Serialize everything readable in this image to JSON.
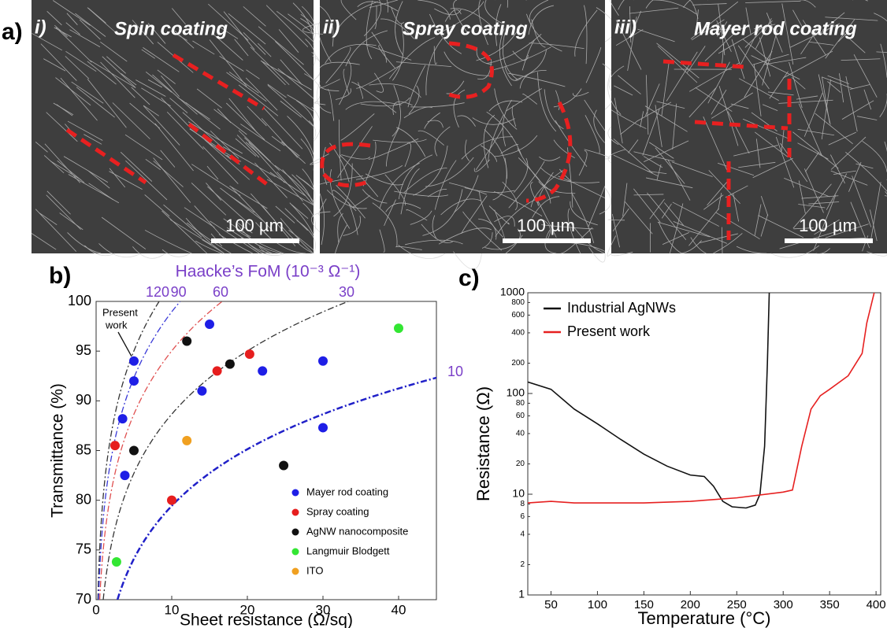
{
  "panel_labels": [
    "a)",
    "b)",
    "c)"
  ],
  "images": [
    {
      "label": "i)",
      "title": "Spin coating",
      "scale_bar": "100 µm"
    },
    {
      "label": "ii)",
      "title": "Spray coating",
      "scale_bar": "100 µm"
    },
    {
      "label": "iii)",
      "title": "Mayer rod coating",
      "scale_bar": "100 µm"
    }
  ],
  "chart_data": [
    {
      "type": "scatter",
      "top_title": "Haacke’s FoM (10⁻³ Ω⁻¹)",
      "x_label": "Sheet resistance (Ω/sq)",
      "y_label": "Transmittance (%)",
      "xlim": [
        0,
        45
      ],
      "xticks": [
        0,
        10,
        20,
        30,
        40
      ],
      "ylim": [
        70,
        100
      ],
      "yticks": [
        70,
        75,
        80,
        85,
        90,
        95,
        100
      ],
      "annotation_lines": [
        "Present",
        "work"
      ],
      "fom_curves": [
        {
          "value": 120,
          "color": "#333333"
        },
        {
          "value": 90,
          "color": "#3a3ad8"
        },
        {
          "value": 60,
          "color": "#e05050"
        },
        {
          "value": 30,
          "color": "#333333"
        },
        {
          "value": 10,
          "color": "#2020c8"
        }
      ],
      "legend": "lower right",
      "series": [
        {
          "name": "Mayer rod coating",
          "color": "#1e1ee6",
          "x": [
            15,
            5,
            5,
            3.5,
            3.8,
            14,
            22,
            30,
            30
          ],
          "values": [
            97.7,
            94,
            92,
            88.2,
            82.5,
            91,
            93,
            94,
            87.3
          ]
        },
        {
          "name": "Spray coating",
          "color": "#e61e1e",
          "x": [
            2.5,
            10,
            16,
            20.3
          ],
          "values": [
            85.5,
            80,
            93,
            94.7
          ]
        },
        {
          "name": "AgNW nanocomposite",
          "color": "#111111",
          "x": [
            12,
            5,
            17.7,
            24.8
          ],
          "values": [
            96,
            85,
            93.7,
            83.5
          ]
        },
        {
          "name": "Langmuir Blodgett",
          "color": "#33e633",
          "x": [
            2.7,
            40
          ],
          "values": [
            73.8,
            97.3
          ]
        },
        {
          "name": "ITO",
          "color": "#f0a020",
          "x": [
            12
          ],
          "values": [
            86
          ]
        }
      ]
    },
    {
      "type": "line",
      "x_label": "Temperature (°C)",
      "y_label": "Resistance (Ω)",
      "log_y": true,
      "xlim": [
        25,
        405
      ],
      "xticks": [
        50,
        100,
        150,
        200,
        250,
        300,
        350,
        400
      ],
      "ylim": [
        1,
        1000
      ],
      "yticks": [
        1,
        2,
        4,
        6,
        8,
        10,
        20,
        40,
        60,
        80,
        100,
        200,
        400,
        600,
        800,
        1000
      ],
      "series": [
        {
          "name": "Industrial AgNWs",
          "color": "#111111",
          "x": [
            25,
            50,
            75,
            100,
            125,
            150,
            175,
            200,
            215,
            225,
            235,
            245,
            260,
            270,
            275,
            280,
            283,
            285
          ],
          "values": [
            130,
            110,
            70,
            50,
            35,
            25,
            19,
            15.5,
            15,
            12,
            8.5,
            7.5,
            7.3,
            7.8,
            10,
            30,
            200,
            1000
          ]
        },
        {
          "name": "Present work",
          "color": "#e62020",
          "x": [
            25,
            50,
            75,
            100,
            150,
            200,
            250,
            300,
            310,
            320,
            330,
            340,
            350,
            370,
            385,
            390,
            398
          ],
          "values": [
            8.2,
            8.5,
            8.2,
            8.2,
            8.2,
            8.5,
            9.2,
            10.5,
            11,
            30,
            70,
            95,
            110,
            150,
            250,
            500,
            1000
          ]
        }
      ]
    }
  ]
}
